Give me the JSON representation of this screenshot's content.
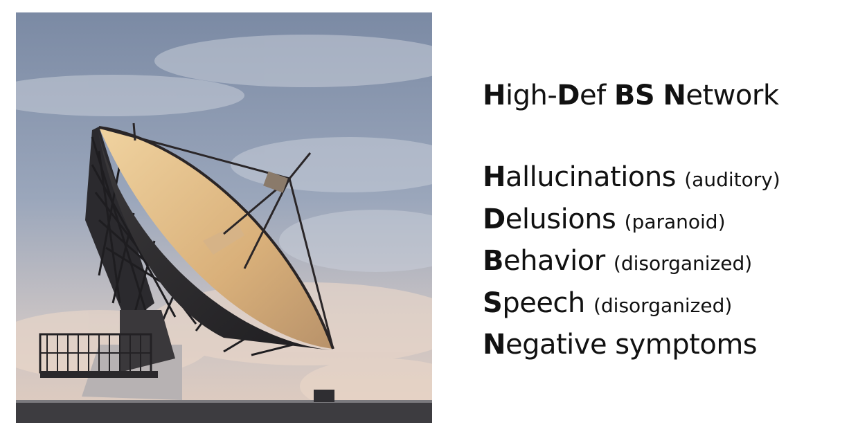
{
  "photo": {
    "subject": "satellite dish antenna against evening sky"
  },
  "title": {
    "parts": [
      {
        "text": "H",
        "bold": true
      },
      {
        "text": "igh-",
        "bold": false
      },
      {
        "text": "D",
        "bold": true
      },
      {
        "text": "ef ",
        "bold": false
      },
      {
        "text": "BS",
        "bold": true
      },
      {
        "text": " ",
        "bold": false
      },
      {
        "text": "N",
        "bold": true
      },
      {
        "text": "etwork",
        "bold": false
      }
    ]
  },
  "items": [
    {
      "initial": "H",
      "rest": "allucinations",
      "qualifier": "(auditory)"
    },
    {
      "initial": "D",
      "rest": "elusions",
      "qualifier": "(paranoid)"
    },
    {
      "initial": "B",
      "rest": "ehavior",
      "qualifier": "(disorganized)"
    },
    {
      "initial": "S",
      "rest": "peech",
      "qualifier": "(disorganized)"
    },
    {
      "initial": "N",
      "rest": "egative symptoms",
      "qualifier": ""
    }
  ]
}
